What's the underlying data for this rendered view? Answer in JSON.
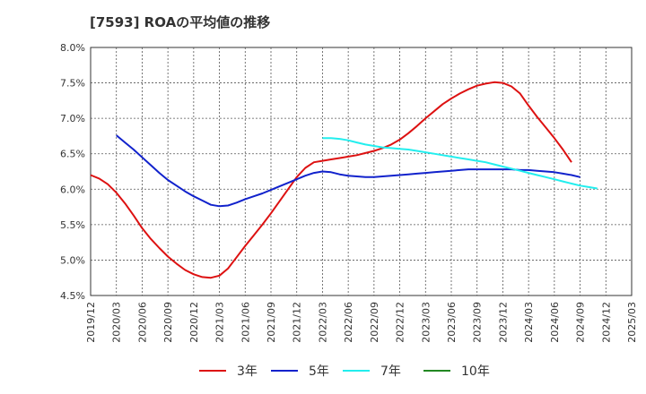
{
  "chart_data": {
    "type": "line",
    "title": "[7593]  ROAの平均値の推移",
    "xlabel": "",
    "ylabel": "",
    "ylim": [
      4.5,
      8.0
    ],
    "y_ticks": [
      "4.5%",
      "5.0%",
      "5.5%",
      "6.0%",
      "6.5%",
      "7.0%",
      "7.5%",
      "8.0%"
    ],
    "y_tick_values": [
      4.5,
      5.0,
      5.5,
      6.0,
      6.5,
      7.0,
      7.5,
      8.0
    ],
    "x_ticks": [
      "2019/12",
      "2020/03",
      "2020/06",
      "2020/09",
      "2020/12",
      "2021/03",
      "2021/06",
      "2021/09",
      "2021/12",
      "2022/03",
      "2022/06",
      "2022/09",
      "2022/12",
      "2023/03",
      "2023/06",
      "2023/09",
      "2023/12",
      "2024/03",
      "2024/06",
      "2024/09",
      "2024/12",
      "2025/03"
    ],
    "grid": true,
    "legend_position": "bottom",
    "series": [
      {
        "name": "3年",
        "color": "#dd1111",
        "points": [
          [
            "2019/12",
            6.2
          ],
          [
            "2020/01",
            6.15
          ],
          [
            "2020/02",
            6.07
          ],
          [
            "2020/03",
            5.95
          ],
          [
            "2020/04",
            5.8
          ],
          [
            "2020/05",
            5.63
          ],
          [
            "2020/06",
            5.45
          ],
          [
            "2020/07",
            5.3
          ],
          [
            "2020/08",
            5.17
          ],
          [
            "2020/09",
            5.05
          ],
          [
            "2020/10",
            4.95
          ],
          [
            "2020/11",
            4.86
          ],
          [
            "2020/12",
            4.8
          ],
          [
            "2021/01",
            4.76
          ],
          [
            "2021/02",
            4.75
          ],
          [
            "2021/03",
            4.78
          ],
          [
            "2021/04",
            4.88
          ],
          [
            "2021/05",
            5.04
          ],
          [
            "2021/06",
            5.2
          ],
          [
            "2021/07",
            5.35
          ],
          [
            "2021/08",
            5.5
          ],
          [
            "2021/09",
            5.66
          ],
          [
            "2021/10",
            5.83
          ],
          [
            "2021/11",
            6.0
          ],
          [
            "2021/12",
            6.17
          ],
          [
            "2022/01",
            6.3
          ],
          [
            "2022/02",
            6.38
          ],
          [
            "2022/03",
            6.4
          ],
          [
            "2022/04",
            6.42
          ],
          [
            "2022/05",
            6.44
          ],
          [
            "2022/06",
            6.46
          ],
          [
            "2022/07",
            6.48
          ],
          [
            "2022/08",
            6.51
          ],
          [
            "2022/09",
            6.54
          ],
          [
            "2022/10",
            6.58
          ],
          [
            "2022/11",
            6.63
          ],
          [
            "2022/12",
            6.7
          ],
          [
            "2023/01",
            6.79
          ],
          [
            "2023/02",
            6.89
          ],
          [
            "2023/03",
            7.0
          ],
          [
            "2023/04",
            7.1
          ],
          [
            "2023/05",
            7.2
          ],
          [
            "2023/06",
            7.28
          ],
          [
            "2023/07",
            7.35
          ],
          [
            "2023/08",
            7.41
          ],
          [
            "2023/09",
            7.46
          ],
          [
            "2023/10",
            7.49
          ],
          [
            "2023/11",
            7.51
          ],
          [
            "2023/12",
            7.5
          ],
          [
            "2024/01",
            7.45
          ],
          [
            "2024/02",
            7.35
          ],
          [
            "2024/03",
            7.18
          ],
          [
            "2024/04",
            7.02
          ],
          [
            "2024/05",
            6.87
          ],
          [
            "2024/06",
            6.72
          ],
          [
            "2024/07",
            6.56
          ],
          [
            "2024/08",
            6.38
          ]
        ]
      },
      {
        "name": "5年",
        "color": "#1122cc",
        "points": [
          [
            "2020/03",
            6.76
          ],
          [
            "2020/04",
            6.66
          ],
          [
            "2020/05",
            6.56
          ],
          [
            "2020/06",
            6.45
          ],
          [
            "2020/07",
            6.34
          ],
          [
            "2020/08",
            6.23
          ],
          [
            "2020/09",
            6.13
          ],
          [
            "2020/10",
            6.05
          ],
          [
            "2020/11",
            5.97
          ],
          [
            "2020/12",
            5.9
          ],
          [
            "2021/01",
            5.84
          ],
          [
            "2021/02",
            5.78
          ],
          [
            "2021/03",
            5.76
          ],
          [
            "2021/04",
            5.77
          ],
          [
            "2021/05",
            5.81
          ],
          [
            "2021/06",
            5.86
          ],
          [
            "2021/07",
            5.9
          ],
          [
            "2021/08",
            5.94
          ],
          [
            "2021/09",
            5.99
          ],
          [
            "2021/10",
            6.04
          ],
          [
            "2021/11",
            6.09
          ],
          [
            "2021/12",
            6.14
          ],
          [
            "2022/01",
            6.19
          ],
          [
            "2022/02",
            6.23
          ],
          [
            "2022/03",
            6.25
          ],
          [
            "2022/04",
            6.24
          ],
          [
            "2022/05",
            6.21
          ],
          [
            "2022/06",
            6.19
          ],
          [
            "2022/07",
            6.18
          ],
          [
            "2022/08",
            6.17
          ],
          [
            "2022/09",
            6.17
          ],
          [
            "2022/10",
            6.18
          ],
          [
            "2022/11",
            6.19
          ],
          [
            "2022/12",
            6.2
          ],
          [
            "2023/01",
            6.21
          ],
          [
            "2023/02",
            6.22
          ],
          [
            "2023/03",
            6.23
          ],
          [
            "2023/04",
            6.24
          ],
          [
            "2023/05",
            6.25
          ],
          [
            "2023/06",
            6.26
          ],
          [
            "2023/07",
            6.27
          ],
          [
            "2023/08",
            6.28
          ],
          [
            "2023/09",
            6.28
          ],
          [
            "2023/10",
            6.28
          ],
          [
            "2023/11",
            6.28
          ],
          [
            "2023/12",
            6.28
          ],
          [
            "2024/01",
            6.28
          ],
          [
            "2024/02",
            6.27
          ],
          [
            "2024/03",
            6.27
          ],
          [
            "2024/04",
            6.26
          ],
          [
            "2024/05",
            6.25
          ],
          [
            "2024/06",
            6.24
          ],
          [
            "2024/07",
            6.22
          ],
          [
            "2024/08",
            6.2
          ],
          [
            "2024/09",
            6.17
          ]
        ]
      },
      {
        "name": "7年",
        "color": "#22eeee",
        "points": [
          [
            "2022/03",
            6.72
          ],
          [
            "2022/04",
            6.72
          ],
          [
            "2022/05",
            6.71
          ],
          [
            "2022/06",
            6.69
          ],
          [
            "2022/07",
            6.66
          ],
          [
            "2022/08",
            6.63
          ],
          [
            "2022/09",
            6.61
          ],
          [
            "2022/10",
            6.59
          ],
          [
            "2022/11",
            6.58
          ],
          [
            "2022/12",
            6.57
          ],
          [
            "2023/01",
            6.56
          ],
          [
            "2023/02",
            6.54
          ],
          [
            "2023/03",
            6.52
          ],
          [
            "2023/04",
            6.5
          ],
          [
            "2023/05",
            6.48
          ],
          [
            "2023/06",
            6.46
          ],
          [
            "2023/07",
            6.44
          ],
          [
            "2023/08",
            6.42
          ],
          [
            "2023/09",
            6.4
          ],
          [
            "2023/10",
            6.38
          ],
          [
            "2023/11",
            6.35
          ],
          [
            "2023/12",
            6.32
          ],
          [
            "2024/01",
            6.29
          ],
          [
            "2024/02",
            6.26
          ],
          [
            "2024/03",
            6.23
          ],
          [
            "2024/04",
            6.2
          ],
          [
            "2024/05",
            6.17
          ],
          [
            "2024/06",
            6.14
          ],
          [
            "2024/07",
            6.11
          ],
          [
            "2024/08",
            6.08
          ],
          [
            "2024/09",
            6.05
          ],
          [
            "2024/10",
            6.03
          ],
          [
            "2024/11",
            6.01
          ]
        ]
      },
      {
        "name": "10年",
        "color": "#228822",
        "points": []
      }
    ]
  }
}
